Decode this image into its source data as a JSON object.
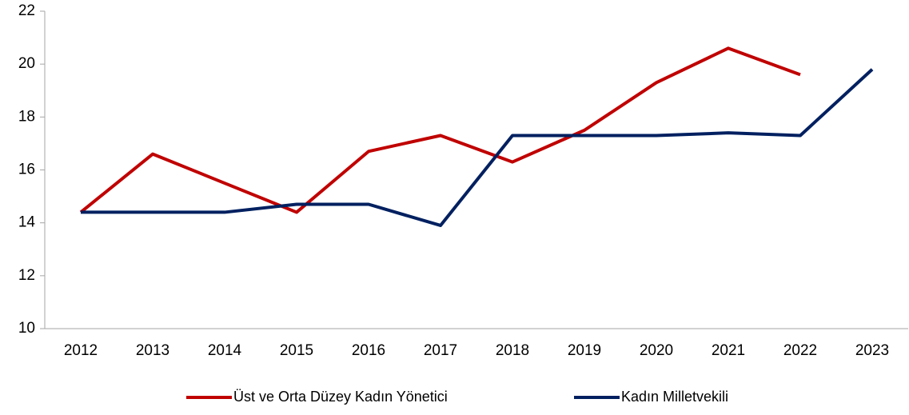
{
  "chart_data": {
    "type": "line",
    "categories": [
      "2012",
      "2013",
      "2014",
      "2015",
      "2016",
      "2017",
      "2018",
      "2019",
      "2020",
      "2021",
      "2022",
      "2023"
    ],
    "series": [
      {
        "name": "Üst ve Orta Düzey Kadın Yönetici",
        "color": "#c00000",
        "values": [
          14.4,
          16.6,
          15.5,
          14.4,
          16.7,
          17.3,
          16.3,
          17.5,
          19.3,
          20.6,
          19.6,
          null
        ]
      },
      {
        "name": "Kadın Milletvekili",
        "color": "#002060",
        "values": [
          14.4,
          14.4,
          14.4,
          14.7,
          14.7,
          13.9,
          17.3,
          17.3,
          17.3,
          17.4,
          17.3,
          19.8
        ]
      }
    ],
    "ylim": [
      10,
      22
    ],
    "yticks": [
      10,
      12,
      14,
      16,
      18,
      20,
      22
    ],
    "grid": false,
    "legend": "bottom"
  }
}
